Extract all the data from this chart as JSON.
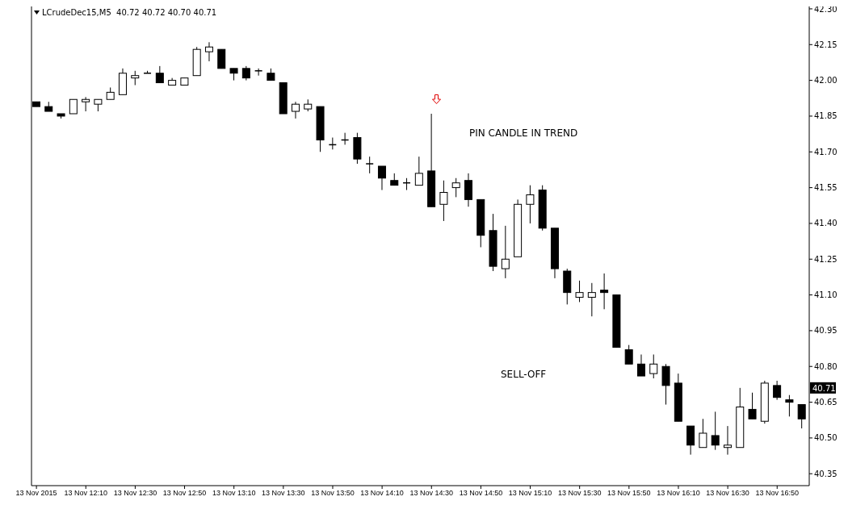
{
  "chart_data": {
    "type": "candlestick",
    "title": "LCrudeDec15,M5  40.72 40.72 40.70 40.71",
    "color": "#000000",
    "x": [
      "2015-11-13T11:50",
      "2015-11-13T11:55",
      "2015-11-13T12:00",
      "2015-11-13T12:05",
      "2015-11-13T12:10",
      "2015-11-13T12:15",
      "2015-11-13T12:20",
      "2015-11-13T12:25",
      "2015-11-13T12:30",
      "2015-11-13T12:35",
      "2015-11-13T12:40",
      "2015-11-13T12:45",
      "2015-11-13T12:50",
      "2015-11-13T12:55",
      "2015-11-13T13:00",
      "2015-11-13T13:05",
      "2015-11-13T13:10",
      "2015-11-13T13:15",
      "2015-11-13T13:20",
      "2015-11-13T13:25",
      "2015-11-13T13:30",
      "2015-11-13T13:35",
      "2015-11-13T13:40",
      "2015-11-13T13:45",
      "2015-11-13T13:50",
      "2015-11-13T13:55",
      "2015-11-13T14:00",
      "2015-11-13T14:05",
      "2015-11-13T14:10",
      "2015-11-13T14:15",
      "2015-11-13T14:20",
      "2015-11-13T14:25",
      "2015-11-13T14:30",
      "2015-11-13T14:35",
      "2015-11-13T14:40",
      "2015-11-13T14:45",
      "2015-11-13T14:50",
      "2015-11-13T14:55",
      "2015-11-13T15:00",
      "2015-11-13T15:05",
      "2015-11-13T15:10",
      "2015-11-13T15:15",
      "2015-11-13T15:20",
      "2015-11-13T15:25",
      "2015-11-13T15:30",
      "2015-11-13T15:35",
      "2015-11-13T15:40",
      "2015-11-13T15:45",
      "2015-11-13T15:50",
      "2015-11-13T15:55",
      "2015-11-13T16:00",
      "2015-11-13T16:05",
      "2015-11-13T16:10",
      "2015-11-13T16:15",
      "2015-11-13T16:20",
      "2015-11-13T16:25",
      "2015-11-13T16:30",
      "2015-11-13T16:35",
      "2015-11-13T16:40",
      "2015-11-13T16:45",
      "2015-11-13T16:50",
      "2015-11-13T16:55",
      "2015-11-13T17:00"
    ],
    "ohlc": [
      [
        41.91,
        41.91,
        41.89,
        41.89
      ],
      [
        41.89,
        41.91,
        41.87,
        41.87
      ],
      [
        41.86,
        41.86,
        41.84,
        41.85
      ],
      [
        41.86,
        41.92,
        41.86,
        41.92
      ],
      [
        41.91,
        41.93,
        41.87,
        41.92
      ],
      [
        41.9,
        41.92,
        41.87,
        41.92
      ],
      [
        41.92,
        41.97,
        41.92,
        41.95
      ],
      [
        41.94,
        42.05,
        41.94,
        42.03
      ],
      [
        42.01,
        42.04,
        41.98,
        42.02
      ],
      [
        42.03,
        42.04,
        42.03,
        42.03
      ],
      [
        42.03,
        42.06,
        41.99,
        41.99
      ],
      [
        41.98,
        42.01,
        41.98,
        42.0
      ],
      [
        41.98,
        42.01,
        41.98,
        42.01
      ],
      [
        42.02,
        42.14,
        42.02,
        42.13
      ],
      [
        42.12,
        42.16,
        42.08,
        42.14
      ],
      [
        42.13,
        42.13,
        42.05,
        42.05
      ],
      [
        42.05,
        42.05,
        42.0,
        42.03
      ],
      [
        42.05,
        42.06,
        42.0,
        42.01
      ],
      [
        42.04,
        42.05,
        42.02,
        42.04
      ],
      [
        42.03,
        42.05,
        42.0,
        42.0
      ],
      [
        41.99,
        41.99,
        41.86,
        41.86
      ],
      [
        41.87,
        41.91,
        41.84,
        41.9
      ],
      [
        41.88,
        41.92,
        41.87,
        41.9
      ],
      [
        41.89,
        41.89,
        41.7,
        41.75
      ],
      [
        41.73,
        41.76,
        41.71,
        41.73
      ],
      [
        41.75,
        41.78,
        41.73,
        41.75
      ],
      [
        41.76,
        41.78,
        41.65,
        41.67
      ],
      [
        41.65,
        41.68,
        41.61,
        41.65
      ],
      [
        41.64,
        41.64,
        41.54,
        41.59
      ],
      [
        41.58,
        41.61,
        41.56,
        41.56
      ],
      [
        41.57,
        41.59,
        41.54,
        41.57
      ],
      [
        41.56,
        41.68,
        41.56,
        41.61
      ],
      [
        41.62,
        41.86,
        41.47,
        41.47
      ],
      [
        41.48,
        41.58,
        41.41,
        41.53
      ],
      [
        41.55,
        41.59,
        41.51,
        41.57
      ],
      [
        41.58,
        41.61,
        41.47,
        41.5
      ],
      [
        41.5,
        41.5,
        41.3,
        41.35
      ],
      [
        41.37,
        41.44,
        41.2,
        41.22
      ],
      [
        41.21,
        41.39,
        41.17,
        41.25
      ],
      [
        41.26,
        41.5,
        41.26,
        41.48
      ],
      [
        41.48,
        41.56,
        41.4,
        41.52
      ],
      [
        41.54,
        41.56,
        41.37,
        41.38
      ],
      [
        41.38,
        41.38,
        41.17,
        41.21
      ],
      [
        41.2,
        41.21,
        41.06,
        41.11
      ],
      [
        41.09,
        41.16,
        41.07,
        41.11
      ],
      [
        41.09,
        41.15,
        41.01,
        41.11
      ],
      [
        41.12,
        41.19,
        41.04,
        41.11
      ],
      [
        41.1,
        41.1,
        40.88,
        40.88
      ],
      [
        40.87,
        40.89,
        40.81,
        40.81
      ],
      [
        40.81,
        40.85,
        40.76,
        40.76
      ],
      [
        40.77,
        40.85,
        40.75,
        40.81
      ],
      [
        40.8,
        40.81,
        40.64,
        40.72
      ],
      [
        40.73,
        40.77,
        40.57,
        40.57
      ],
      [
        40.55,
        40.55,
        40.43,
        40.47
      ],
      [
        40.46,
        40.58,
        40.46,
        40.52
      ],
      [
        40.51,
        40.61,
        40.45,
        40.47
      ],
      [
        40.46,
        40.55,
        40.43,
        40.47
      ],
      [
        40.46,
        40.71,
        40.46,
        40.63
      ],
      [
        40.62,
        40.69,
        40.58,
        40.58
      ],
      [
        40.57,
        40.74,
        40.56,
        40.73
      ],
      [
        40.72,
        40.74,
        40.66,
        40.67
      ],
      [
        40.66,
        40.68,
        40.59,
        40.65
      ],
      [
        40.64,
        40.64,
        40.54,
        40.58
      ]
    ],
    "xlim": [
      "2015-11-13T11:48",
      "2015-11-13T17:03"
    ],
    "xticks": [
      {
        "value": "2015-11-13T11:50",
        "label": "13 Nov 2015"
      },
      {
        "value": "2015-11-13T12:10",
        "label": "13 Nov 12:10"
      },
      {
        "value": "2015-11-13T12:30",
        "label": "13 Nov 12:30"
      },
      {
        "value": "2015-11-13T12:50",
        "label": "13 Nov 12:50"
      },
      {
        "value": "2015-11-13T13:10",
        "label": "13 Nov 13:10"
      },
      {
        "value": "2015-11-13T13:30",
        "label": "13 Nov 13:30"
      },
      {
        "value": "2015-11-13T13:50",
        "label": "13 Nov 13:50"
      },
      {
        "value": "2015-11-13T14:10",
        "label": "13 Nov 14:10"
      },
      {
        "value": "2015-11-13T14:30",
        "label": "13 Nov 14:30"
      },
      {
        "value": "2015-11-13T14:50",
        "label": "13 Nov 14:50"
      },
      {
        "value": "2015-11-13T15:10",
        "label": "13 Nov 15:10"
      },
      {
        "value": "2015-11-13T15:30",
        "label": "13 Nov 15:30"
      },
      {
        "value": "2015-11-13T15:50",
        "label": "13 Nov 15:50"
      },
      {
        "value": "2015-11-13T16:10",
        "label": "13 Nov 16:10"
      },
      {
        "value": "2015-11-13T16:30",
        "label": "13 Nov 16:30"
      },
      {
        "value": "2015-11-13T16:50",
        "label": "13 Nov 16:50"
      }
    ],
    "ylim": [
      40.3,
      42.31
    ],
    "yticks": [
      {
        "value": 40.35,
        "label": "40.35"
      },
      {
        "value": 40.5,
        "label": "40.50"
      },
      {
        "value": 40.65,
        "label": "40.65"
      },
      {
        "value": 40.8,
        "label": "40.80"
      },
      {
        "value": 40.95,
        "label": "40.95"
      },
      {
        "value": 41.1,
        "label": "41.10"
      },
      {
        "value": 41.25,
        "label": "41.25"
      },
      {
        "value": 41.4,
        "label": "41.40"
      },
      {
        "value": 41.55,
        "label": "41.55"
      },
      {
        "value": 41.7,
        "label": "41.70"
      },
      {
        "value": 41.85,
        "label": "41.85"
      },
      {
        "value": 42.0,
        "label": "42.00"
      },
      {
        "value": 42.15,
        "label": "42.15"
      },
      {
        "value": 42.3,
        "label": "42.30"
      }
    ],
    "annotations": [
      "PIN CANDLE IN TREND",
      "SELL-OFF",
      {
        "text": "40.71",
        "y": 40.71
      }
    ]
  }
}
